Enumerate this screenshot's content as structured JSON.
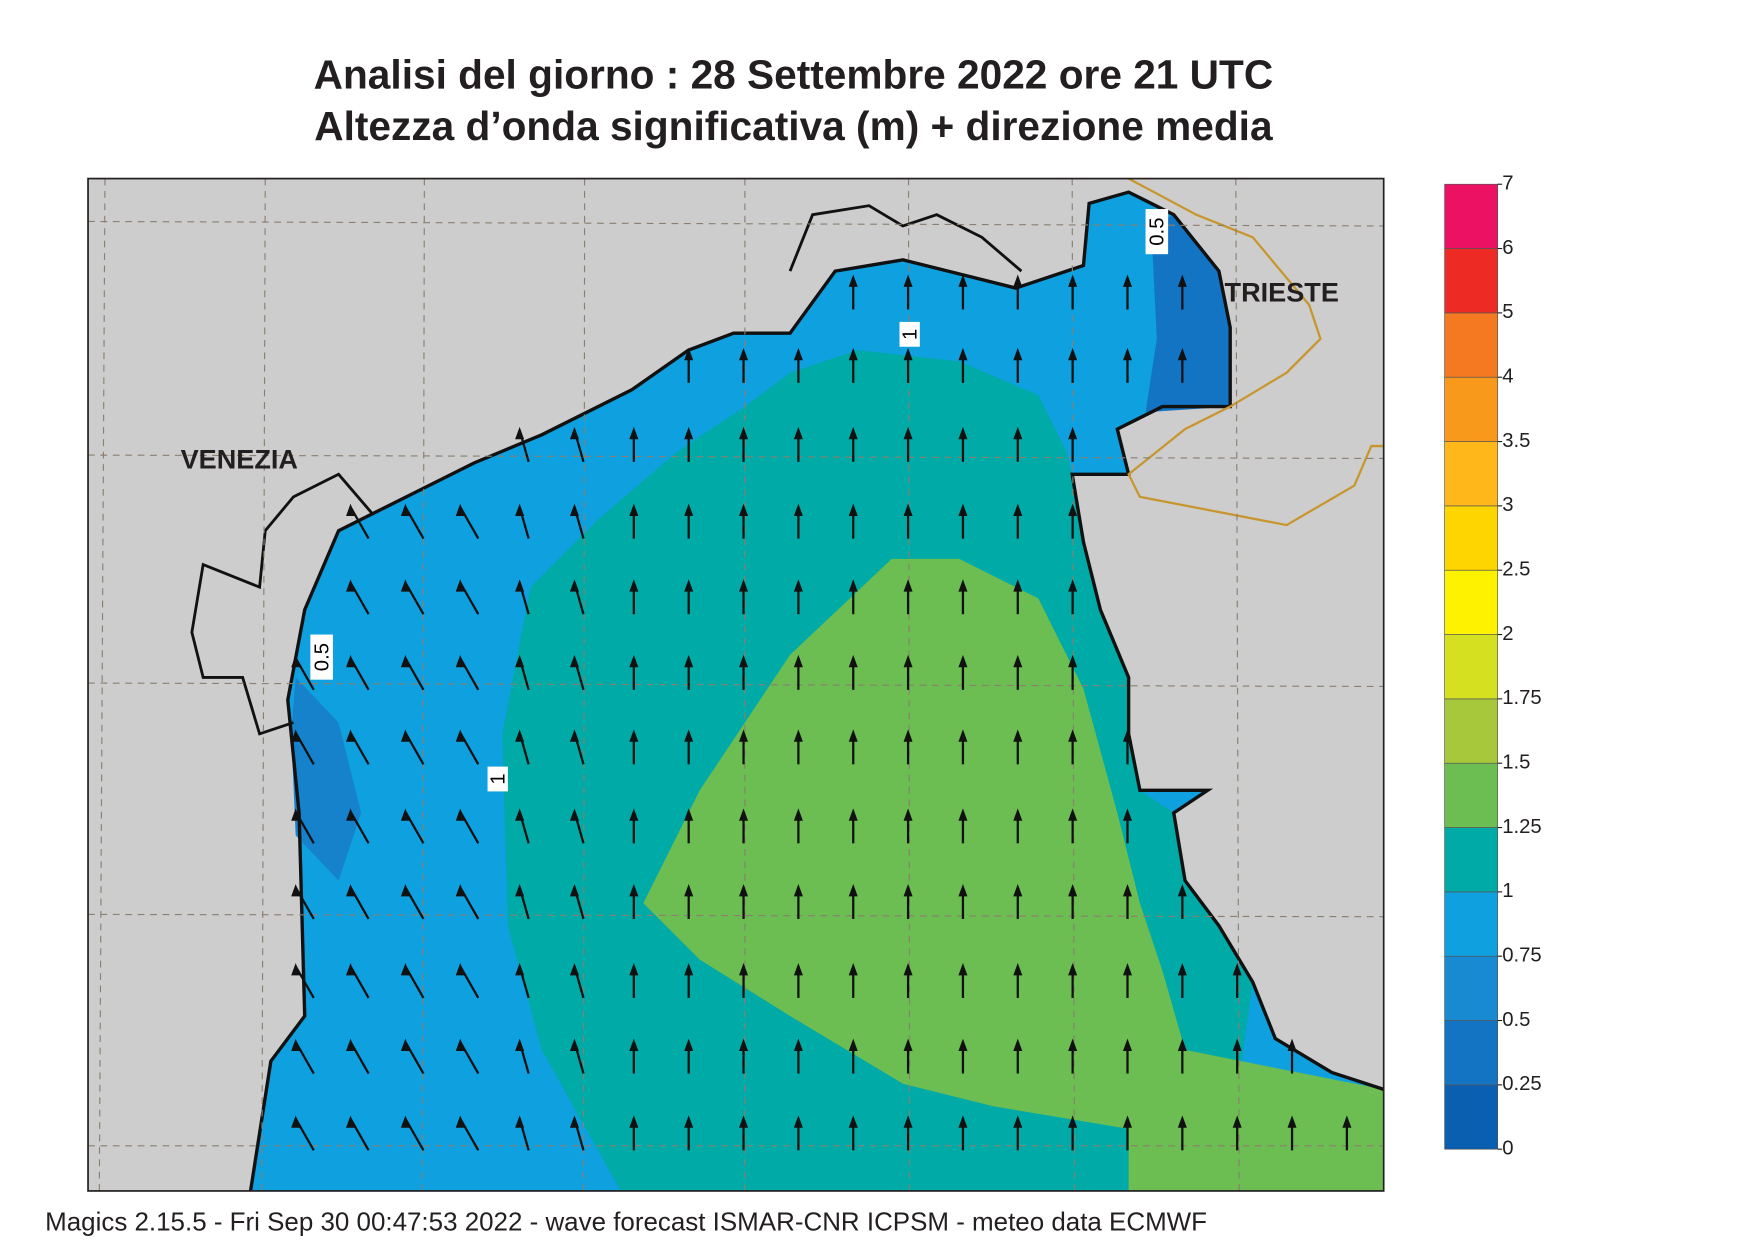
{
  "header": {
    "title": [
      "Analisi del giorno :  28 Settembre 2022   ore 21 UTC",
      "Altezza d’onda significativa (m) + direzione media"
    ]
  },
  "map": {
    "cities": [
      "VENEZIA",
      "TRIESTE"
    ],
    "contour_labels": [
      "0.5",
      "1",
      "1",
      "0.5"
    ]
  },
  "colorbar": {
    "levels": [
      0,
      0.25,
      0.5,
      0.75,
      1,
      1.25,
      1.5,
      1.75,
      2,
      2.5,
      3,
      3.5,
      4,
      5,
      6,
      7
    ],
    "colors": [
      "#0a5fb0",
      "#1474c4",
      "#178ad2",
      "#0fa0e0",
      "#00aaa6",
      "#6cbd52",
      "#a7c83a",
      "#d4e020",
      "#fff200",
      "#ffd500",
      "#ffb71a",
      "#f8991c",
      "#f47920",
      "#ee2a24",
      "#ec1163"
    ]
  },
  "footer": "Magics 2.15.5 - Fri Sep 30 00:47:53 2022 - wave forecast  ISMAR-CNR  ICPSM - meteo data    ECMWF"
}
